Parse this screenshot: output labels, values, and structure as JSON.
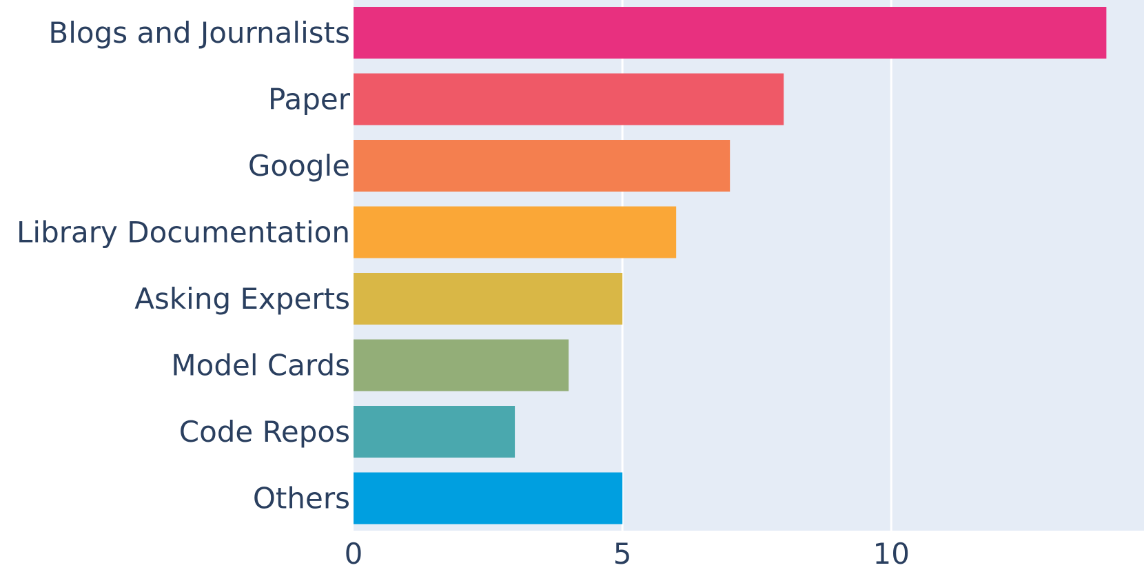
{
  "chart_data": {
    "type": "bar",
    "orientation": "horizontal",
    "categories": [
      "Blogs and Journalists",
      "Paper",
      "Google",
      "Library Documentation",
      "Asking Experts",
      "Model Cards",
      "Code Repos",
      "Others"
    ],
    "values": [
      14,
      8,
      7,
      6,
      5,
      4,
      3,
      5
    ],
    "colors": [
      "#e8307f",
      "#ef5967",
      "#f47f4f",
      "#faa737",
      "#d9b746",
      "#93ae78",
      "#4aa8ae",
      "#009fe0"
    ],
    "xticks": [
      0,
      5,
      10
    ],
    "xlim": [
      0,
      14.7
    ],
    "title": "",
    "xlabel": "",
    "ylabel": "",
    "grid": "vertical",
    "plot_background": "#e5ecf6",
    "gridline_color": "#ffffff",
    "text_color": "#2a3f5f"
  }
}
